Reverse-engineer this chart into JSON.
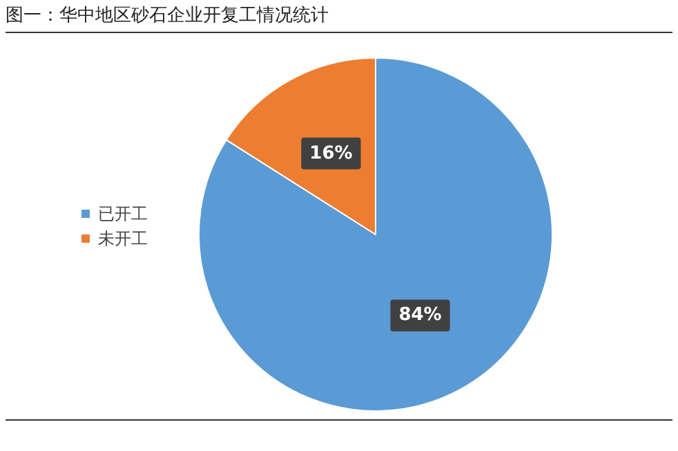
{
  "chart_data": {
    "type": "pie",
    "title": "图一：华中地区砂石企业开复工情况统计",
    "categories": [
      "已开工",
      "未开工"
    ],
    "values": [
      84,
      16
    ],
    "colors": [
      "#5b9bd5",
      "#ed7d31"
    ],
    "value_labels": [
      "84%",
      "16%"
    ],
    "legend": "left"
  }
}
